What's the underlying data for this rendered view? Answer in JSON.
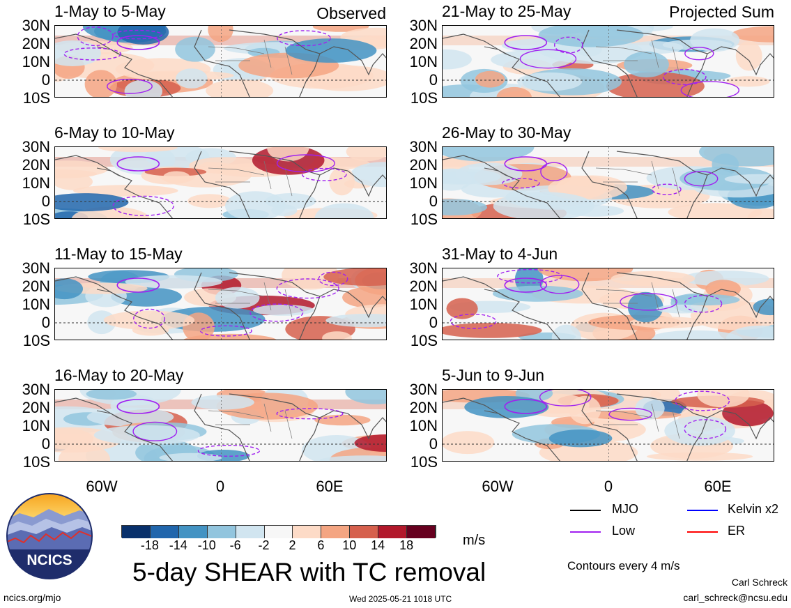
{
  "header": {
    "observed_label": "Observed",
    "projected_label": "Projected Sum"
  },
  "panels": [
    {
      "title": "1-May to 5-May",
      "column": "left",
      "row": 0,
      "variant": 1
    },
    {
      "title": "6-May to 10-May",
      "column": "left",
      "row": 1,
      "variant": 2
    },
    {
      "title": "11-May to 15-May",
      "column": "left",
      "row": 2,
      "variant": 3
    },
    {
      "title": "16-May to 20-May",
      "column": "left",
      "row": 3,
      "variant": 4
    },
    {
      "title": "21-May to 25-May",
      "column": "right",
      "row": 0,
      "variant": 5
    },
    {
      "title": "26-May to 30-May",
      "column": "right",
      "row": 1,
      "variant": 6
    },
    {
      "title": "31-May to 4-Jun",
      "column": "right",
      "row": 2,
      "variant": 7
    },
    {
      "title": "5-Jun to 9-Jun",
      "column": "right",
      "row": 3,
      "variant": 8
    }
  ],
  "lat_labels": [
    "30N",
    "20N",
    "10N",
    "0",
    "10S"
  ],
  "lon_labels": [
    "60W",
    "0",
    "60E"
  ],
  "colorbar": {
    "colors": [
      "#08306b",
      "#2166ac",
      "#4393c3",
      "#92c5de",
      "#d1e5f0",
      "#f7f7f7",
      "#fddbc7",
      "#f4a582",
      "#d6604d",
      "#b2182b",
      "#67001f"
    ],
    "ticks": [
      "-18",
      "-14",
      "-10",
      "-6",
      "-2",
      "2",
      "6",
      "10",
      "14",
      "18"
    ],
    "unit": "m/s"
  },
  "legend": {
    "items": [
      {
        "label": "MJO",
        "color": "#000000"
      },
      {
        "label": "Kelvin x2",
        "color": "#0000ff"
      },
      {
        "label": "Low",
        "color": "#a020f0"
      },
      {
        "label": "ER",
        "color": "#ff0000"
      }
    ],
    "contours_note": "Contours every 4 m/s"
  },
  "footer": {
    "main_title": "5-day SHEAR with TC removal",
    "logo_text": "NCICS",
    "url": "ncics.org/mjo",
    "timestamp": "Wed 2025-05-21 1018 UTC",
    "author": "Carl Schreck",
    "email": "carl_schreck@ncsu.edu"
  }
}
